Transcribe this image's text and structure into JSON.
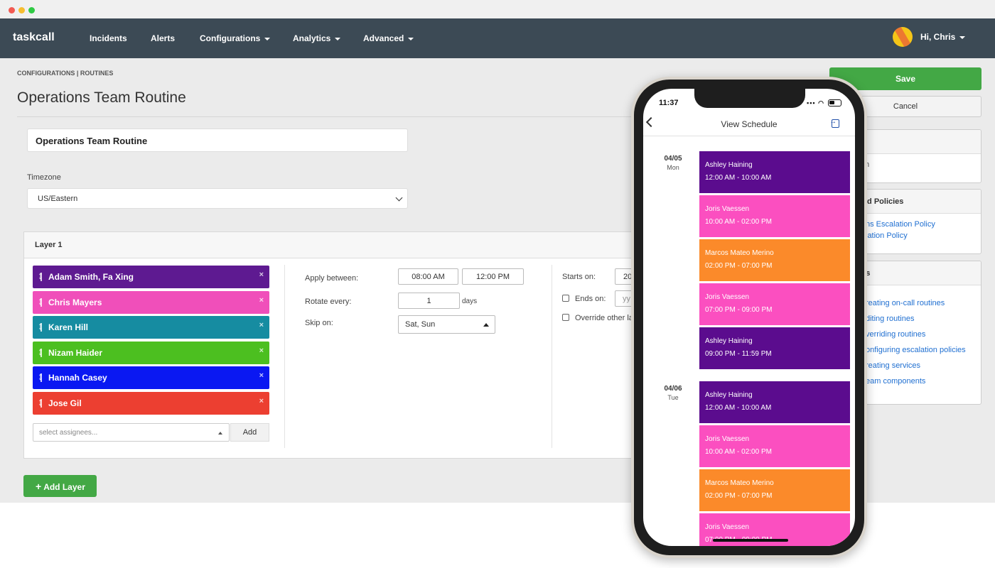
{
  "nav": {
    "brand": "taskcall",
    "items": [
      "Incidents",
      "Alerts",
      "Configurations",
      "Analytics",
      "Advanced"
    ],
    "user": "Hi, Chris"
  },
  "page": {
    "breadcrumb": "CONFIGURATIONS | ROUTINES",
    "title": "Operations Team Routine",
    "name_value": "Operations Team Routine",
    "timezone_label": "Timezone",
    "timezone_value": "US/Eastern"
  },
  "layer": {
    "title": "Layer 1",
    "assignees": [
      {
        "name": "Adam Smith, Fa Xing",
        "color": "#5e1a91"
      },
      {
        "name": "Chris Mayers",
        "color": "#f04fba"
      },
      {
        "name": "Karen Hill",
        "color": "#168ca1"
      },
      {
        "name": "Nizam Haider",
        "color": "#4cbf20"
      },
      {
        "name": "Hannah Casey",
        "color": "#0a18f2"
      },
      {
        "name": "Jose Gil",
        "color": "#ec3f31"
      }
    ],
    "remove_symbol": "×",
    "select_placeholder": "select assignees...",
    "add_label": "Add",
    "apply_between_label": "Apply between:",
    "apply_start": "08:00 AM",
    "apply_end": "12:00 PM",
    "rotate_every_label": "Rotate every:",
    "rotate_value": "1",
    "rotate_unit": "days",
    "skip_on_label": "Skip on:",
    "skip_value": "Sat, Sun",
    "starts_on_label": "Starts on:",
    "starts_on_value": "20",
    "ends_on_label": "Ends on:",
    "ends_on_placeholder": "yy",
    "override_label": "Override other la"
  },
  "actions": {
    "save": "Save",
    "cancel": "Cancel",
    "add_layer": "Add Layer"
  },
  "sidebar": {
    "card1_title": "ne",
    "card1_text": "m",
    "card2_title": "rted Policies",
    "card2_links": [
      "ns Escalation Policy",
      "lation Policy"
    ],
    "card3_title": "ces",
    "card3_links": [
      "reating on-call routines",
      "diting routines",
      "verriding routines",
      "onfiguring escalation policies",
      "reating services",
      "eam components"
    ]
  },
  "phone": {
    "time": "11:37",
    "title": "View Schedule",
    "days": [
      {
        "date": "04/05",
        "dow": "Mon",
        "shifts": [
          {
            "name": "Ashley Haining",
            "time": "12:00 AM - 10:00 AM",
            "color": "#5b0c8e"
          },
          {
            "name": "Joris Vaessen",
            "time": "10:00 AM - 02:00 PM",
            "color": "#fb4fc0"
          },
          {
            "name": "Marcos Mateo Merino",
            "time": "02:00 PM - 07:00 PM",
            "color": "#fb8a2a"
          },
          {
            "name": "Joris Vaessen",
            "time": "07:00 PM - 09:00 PM",
            "color": "#fb4fc0"
          },
          {
            "name": "Ashley Haining",
            "time": "09:00 PM - 11:59 PM",
            "color": "#5b0c8e"
          }
        ]
      },
      {
        "date": "04/06",
        "dow": "Tue",
        "shifts": [
          {
            "name": "Ashley Haining",
            "time": "12:00 AM - 10:00 AM",
            "color": "#5b0c8e"
          },
          {
            "name": "Joris Vaessen",
            "time": "10:00 AM - 02:00 PM",
            "color": "#fb4fc0"
          },
          {
            "name": "Marcos Mateo Merino",
            "time": "02:00 PM - 07:00 PM",
            "color": "#fb8a2a"
          },
          {
            "name": "Joris Vaessen",
            "time": "07:00 PM - 09:00 PM",
            "color": "#fb4fc0"
          }
        ]
      }
    ]
  }
}
